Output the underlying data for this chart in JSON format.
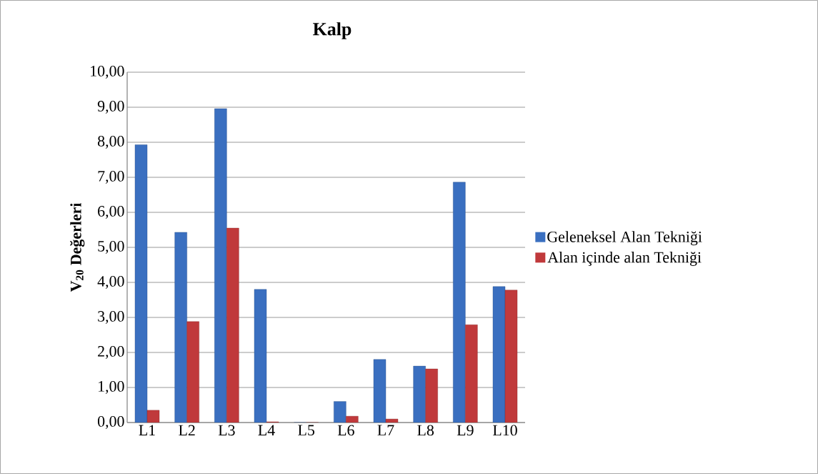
{
  "chart_data": {
    "type": "bar",
    "title": "Kalp",
    "ylabel": "V$_{20}$  Değerleri",
    "categories": [
      "L1",
      "L2",
      "L3",
      "L4",
      "L5",
      "L6",
      "L7",
      "L8",
      "L9",
      "L10"
    ],
    "series": [
      {
        "name": "Geleneksel Alan Tekniği",
        "color": "#3a6fc0",
        "values": [
          7.93,
          5.43,
          8.96,
          3.8,
          0,
          0.6,
          1.8,
          1.61,
          6.86,
          3.88
        ]
      },
      {
        "name": "Alan içinde alan Tekniği",
        "color": "#c0393b",
        "values": [
          0.35,
          2.88,
          5.55,
          0.02,
          0,
          0.18,
          0.1,
          1.53,
          2.79,
          3.78
        ]
      }
    ],
    "ylim": [
      0,
      10
    ],
    "yticks": [
      {
        "value": 0,
        "label": "0,00"
      },
      {
        "value": 1,
        "label": "1,00"
      },
      {
        "value": 2,
        "label": "2,00"
      },
      {
        "value": 3,
        "label": "3,00"
      },
      {
        "value": 4,
        "label": "4,00"
      },
      {
        "value": 5,
        "label": "5,00"
      },
      {
        "value": 6,
        "label": "6,00"
      },
      {
        "value": 7,
        "label": "7,00"
      },
      {
        "value": 8,
        "label": "8,00"
      },
      {
        "value": 9,
        "label": "9,00"
      },
      {
        "value": 10,
        "label": "10,00"
      }
    ],
    "grid": "y",
    "legend": "right"
  }
}
